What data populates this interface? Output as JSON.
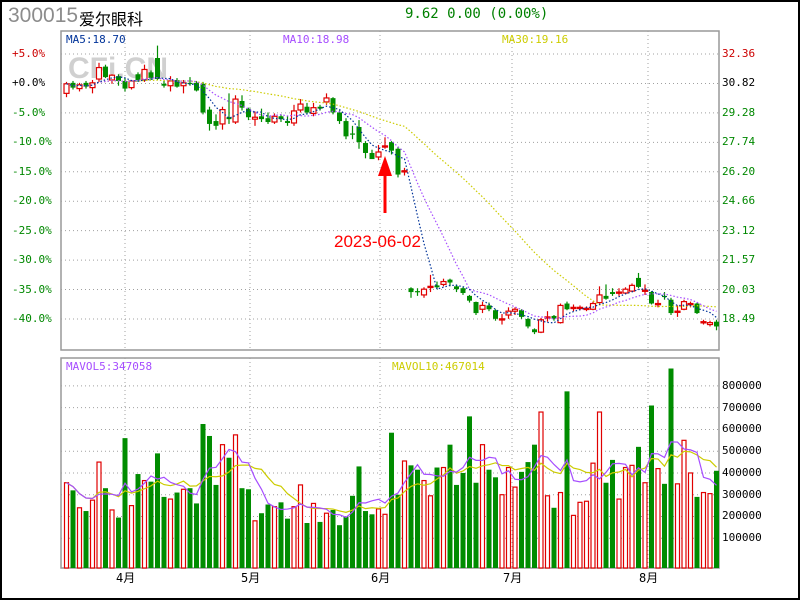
{
  "header": {
    "code": "300015",
    "name": "爱尔眼科",
    "quote": "9.62 0.00 (0.00%)"
  },
  "colors": {
    "up": "#e00000",
    "down": "#008c00",
    "ma5": "#003399",
    "ma10": "#a64dff",
    "ma30": "#cccc00",
    "mavol5": "#a64dff",
    "mavol10": "#cccc00",
    "grid": "#a0a0a0",
    "annotation": "#ff0000"
  },
  "chart_data": [
    {
      "type": "candlestick",
      "legend": {
        "ma5": "MA5:18.70",
        "ma10": "MA10:18.98",
        "ma30": "MA30:19.16"
      },
      "price_ticks": [
        "32.36",
        "30.82",
        "29.28",
        "27.74",
        "26.20",
        "24.66",
        "23.12",
        "21.57",
        "20.03",
        "18.49"
      ],
      "percent_ticks": [
        "+5.0%",
        "+0.0%",
        "-5.0%",
        "-10.0%",
        "-15.0%",
        "-20.0%",
        "-25.0%",
        "-30.0%",
        "-35.0%",
        "-40.0%"
      ],
      "ylim": [
        18.49,
        32.36
      ],
      "grid": true,
      "watermark": "CFi.CN",
      "annotation": {
        "text": "2023-06-02",
        "bar_index": 49
      },
      "candles_ohlc": [
        [
          30.3,
          30.9,
          30.1,
          30.8
        ],
        [
          30.85,
          30.95,
          30.5,
          30.6
        ],
        [
          30.55,
          30.85,
          30.4,
          30.75
        ],
        [
          30.85,
          30.95,
          30.55,
          30.65
        ],
        [
          30.6,
          31.0,
          30.3,
          30.85
        ],
        [
          31.05,
          31.9,
          30.9,
          31.65
        ],
        [
          31.7,
          31.8,
          31.1,
          31.15
        ],
        [
          31.0,
          31.3,
          30.8,
          31.25
        ],
        [
          31.2,
          31.3,
          30.7,
          30.95
        ],
        [
          30.95,
          31.1,
          30.4,
          30.55
        ],
        [
          30.6,
          31.0,
          30.5,
          30.95
        ],
        [
          31.3,
          31.4,
          30.9,
          31.0
        ],
        [
          31.0,
          31.8,
          30.9,
          31.55
        ],
        [
          31.4,
          31.5,
          31.0,
          31.1
        ],
        [
          32.15,
          32.8,
          31.0,
          31.05
        ],
        [
          30.8,
          30.95,
          30.6,
          30.7
        ],
        [
          30.7,
          31.2,
          30.4,
          30.95
        ],
        [
          31.0,
          31.1,
          30.6,
          30.65
        ],
        [
          30.7,
          31.0,
          30.3,
          30.85
        ],
        [
          30.85,
          31.15,
          30.7,
          30.8
        ],
        [
          30.85,
          30.95,
          30.4,
          30.45
        ],
        [
          30.8,
          30.9,
          29.2,
          29.3
        ],
        [
          29.45,
          29.6,
          28.35,
          28.7
        ],
        [
          28.85,
          29.2,
          28.4,
          28.6
        ],
        [
          28.7,
          29.6,
          28.4,
          29.45
        ],
        [
          29.05,
          30.3,
          28.7,
          28.95
        ],
        [
          28.8,
          30.2,
          28.7,
          30.0
        ],
        [
          29.9,
          30.2,
          29.4,
          29.55
        ],
        [
          29.5,
          29.55,
          28.9,
          29.05
        ],
        [
          28.95,
          29.35,
          28.6,
          29.05
        ],
        [
          29.1,
          29.5,
          28.8,
          28.95
        ],
        [
          29.0,
          29.3,
          28.7,
          28.8
        ],
        [
          28.8,
          29.25,
          28.7,
          29.1
        ],
        [
          29.1,
          29.2,
          28.8,
          28.95
        ],
        [
          28.85,
          29.1,
          28.6,
          28.75
        ],
        [
          28.75,
          29.7,
          28.6,
          29.38
        ],
        [
          29.43,
          30.0,
          29.3,
          29.74
        ],
        [
          29.6,
          29.8,
          29.2,
          29.3
        ],
        [
          29.25,
          29.8,
          29.1,
          29.55
        ],
        [
          29.6,
          29.7,
          29.4,
          29.5
        ],
        [
          29.85,
          30.3,
          29.7,
          30.06
        ],
        [
          30.05,
          30.1,
          29.2,
          29.3
        ],
        [
          29.3,
          29.4,
          28.7,
          28.85
        ],
        [
          28.85,
          29.0,
          27.9,
          28.05
        ],
        [
          28.2,
          28.6,
          27.9,
          28.15
        ],
        [
          28.54,
          28.9,
          27.4,
          27.75
        ],
        [
          27.7,
          27.8,
          26.9,
          27.18
        ],
        [
          27.18,
          27.35,
          26.9,
          26.86
        ],
        [
          26.97,
          27.6,
          26.8,
          27.23
        ],
        [
          27.5,
          28.0,
          27.4,
          27.55
        ],
        [
          27.75,
          27.8,
          27.1,
          27.3
        ],
        [
          27.4,
          27.5,
          25.9,
          26.05
        ],
        [
          26.2,
          26.4,
          26.0,
          26.25
        ],
        [
          20.1,
          20.15,
          19.6,
          19.9
        ],
        [
          19.95,
          20.1,
          19.7,
          19.93
        ],
        [
          19.75,
          20.15,
          19.6,
          20.05
        ],
        [
          20.15,
          20.8,
          19.9,
          20.2
        ],
        [
          20.25,
          20.45,
          20.05,
          20.15
        ],
        [
          20.3,
          20.6,
          20.2,
          20.45
        ],
        [
          20.55,
          20.6,
          20.2,
          20.4
        ],
        [
          20.2,
          20.3,
          19.9,
          20.05
        ],
        [
          20.1,
          20.15,
          19.75,
          19.85
        ],
        [
          19.7,
          19.75,
          19.35,
          19.45
        ],
        [
          19.38,
          19.4,
          18.7,
          18.8
        ],
        [
          19.0,
          19.4,
          18.8,
          19.2
        ],
        [
          19.2,
          19.35,
          18.9,
          19.0
        ],
        [
          18.95,
          19.0,
          18.4,
          18.5
        ],
        [
          18.45,
          18.75,
          18.2,
          18.5
        ],
        [
          18.7,
          19.1,
          18.5,
          18.9
        ],
        [
          18.9,
          19.1,
          18.7,
          19.0
        ],
        [
          18.95,
          19.0,
          18.5,
          18.6
        ],
        [
          18.49,
          18.55,
          18.0,
          18.1
        ],
        [
          17.95,
          18.0,
          17.7,
          17.8
        ],
        [
          17.8,
          18.55,
          17.75,
          18.45
        ],
        [
          18.55,
          18.9,
          18.35,
          18.6
        ],
        [
          18.65,
          18.7,
          18.4,
          18.5
        ],
        [
          18.3,
          19.3,
          18.25,
          19.2
        ],
        [
          19.3,
          19.4,
          18.95,
          19.0
        ],
        [
          19.05,
          19.25,
          18.9,
          19.1
        ],
        [
          19.05,
          19.2,
          18.95,
          19.1
        ],
        [
          19.0,
          19.15,
          18.9,
          19.05
        ],
        [
          19.0,
          19.4,
          18.95,
          19.3
        ],
        [
          19.35,
          20.2,
          19.3,
          19.75
        ],
        [
          19.7,
          20.3,
          19.5,
          19.55
        ],
        [
          19.9,
          20.1,
          19.7,
          19.8
        ],
        [
          19.85,
          20.1,
          19.7,
          19.9
        ],
        [
          19.85,
          20.15,
          19.8,
          20.05
        ],
        [
          19.95,
          20.35,
          19.9,
          20.25
        ],
        [
          20.64,
          20.9,
          20.1,
          20.17
        ],
        [
          19.95,
          20.3,
          19.75,
          20.0
        ],
        [
          19.9,
          19.95,
          19.25,
          19.3
        ],
        [
          19.25,
          19.5,
          19.1,
          19.3
        ],
        [
          19.7,
          19.9,
          19.5,
          19.65
        ],
        [
          19.5,
          19.6,
          18.7,
          18.8
        ],
        [
          18.85,
          19.2,
          18.6,
          18.9
        ],
        [
          19.0,
          19.5,
          18.95,
          19.4
        ],
        [
          19.25,
          19.4,
          19.1,
          19.3
        ],
        [
          19.3,
          19.35,
          18.75,
          18.8
        ],
        [
          18.3,
          18.45,
          18.2,
          18.35
        ],
        [
          18.2,
          18.4,
          18.1,
          18.3
        ],
        [
          18.35,
          18.45,
          17.9,
          18.1
        ]
      ]
    },
    {
      "type": "bar",
      "legend": {
        "mavol5": "MAVOL5:347058",
        "mavol10": "MAVOL10:467014"
      },
      "volume_ticks": [
        "800000",
        "700000",
        "600000",
        "500000",
        "400000",
        "300000",
        "200000",
        "100000"
      ],
      "ylim": [
        0,
        800000
      ],
      "x_tick_labels": [
        "4月",
        "5月",
        "6月",
        "7月",
        "8月"
      ],
      "x_tick_bar_index": [
        9,
        28,
        48,
        69,
        89
      ],
      "volumes": [
        355000,
        320000,
        240000,
        225000,
        275000,
        450000,
        330000,
        230000,
        195000,
        560000,
        250000,
        395000,
        365000,
        360000,
        490000,
        290000,
        280000,
        310000,
        325000,
        330000,
        260000,
        625000,
        570000,
        345000,
        530000,
        470000,
        575000,
        330000,
        325000,
        180000,
        215000,
        255000,
        245000,
        265000,
        190000,
        245000,
        345000,
        170000,
        260000,
        175000,
        215000,
        230000,
        160000,
        200000,
        295000,
        430000,
        225000,
        210000,
        235000,
        210000,
        585000,
        300000,
        455000,
        435000,
        415000,
        365000,
        295000,
        425000,
        425000,
        530000,
        345000,
        400000,
        660000,
        355000,
        530000,
        415000,
        380000,
        300000,
        425000,
        335000,
        405000,
        450000,
        530000,
        680000,
        295000,
        240000,
        310000,
        775000,
        205000,
        265000,
        270000,
        445000,
        680000,
        355000,
        460000,
        280000,
        425000,
        435000,
        520000,
        355000,
        710000,
        420000,
        350000,
        880000,
        350000,
        550000,
        400000,
        290000,
        310000,
        305000,
        410000
      ]
    }
  ]
}
